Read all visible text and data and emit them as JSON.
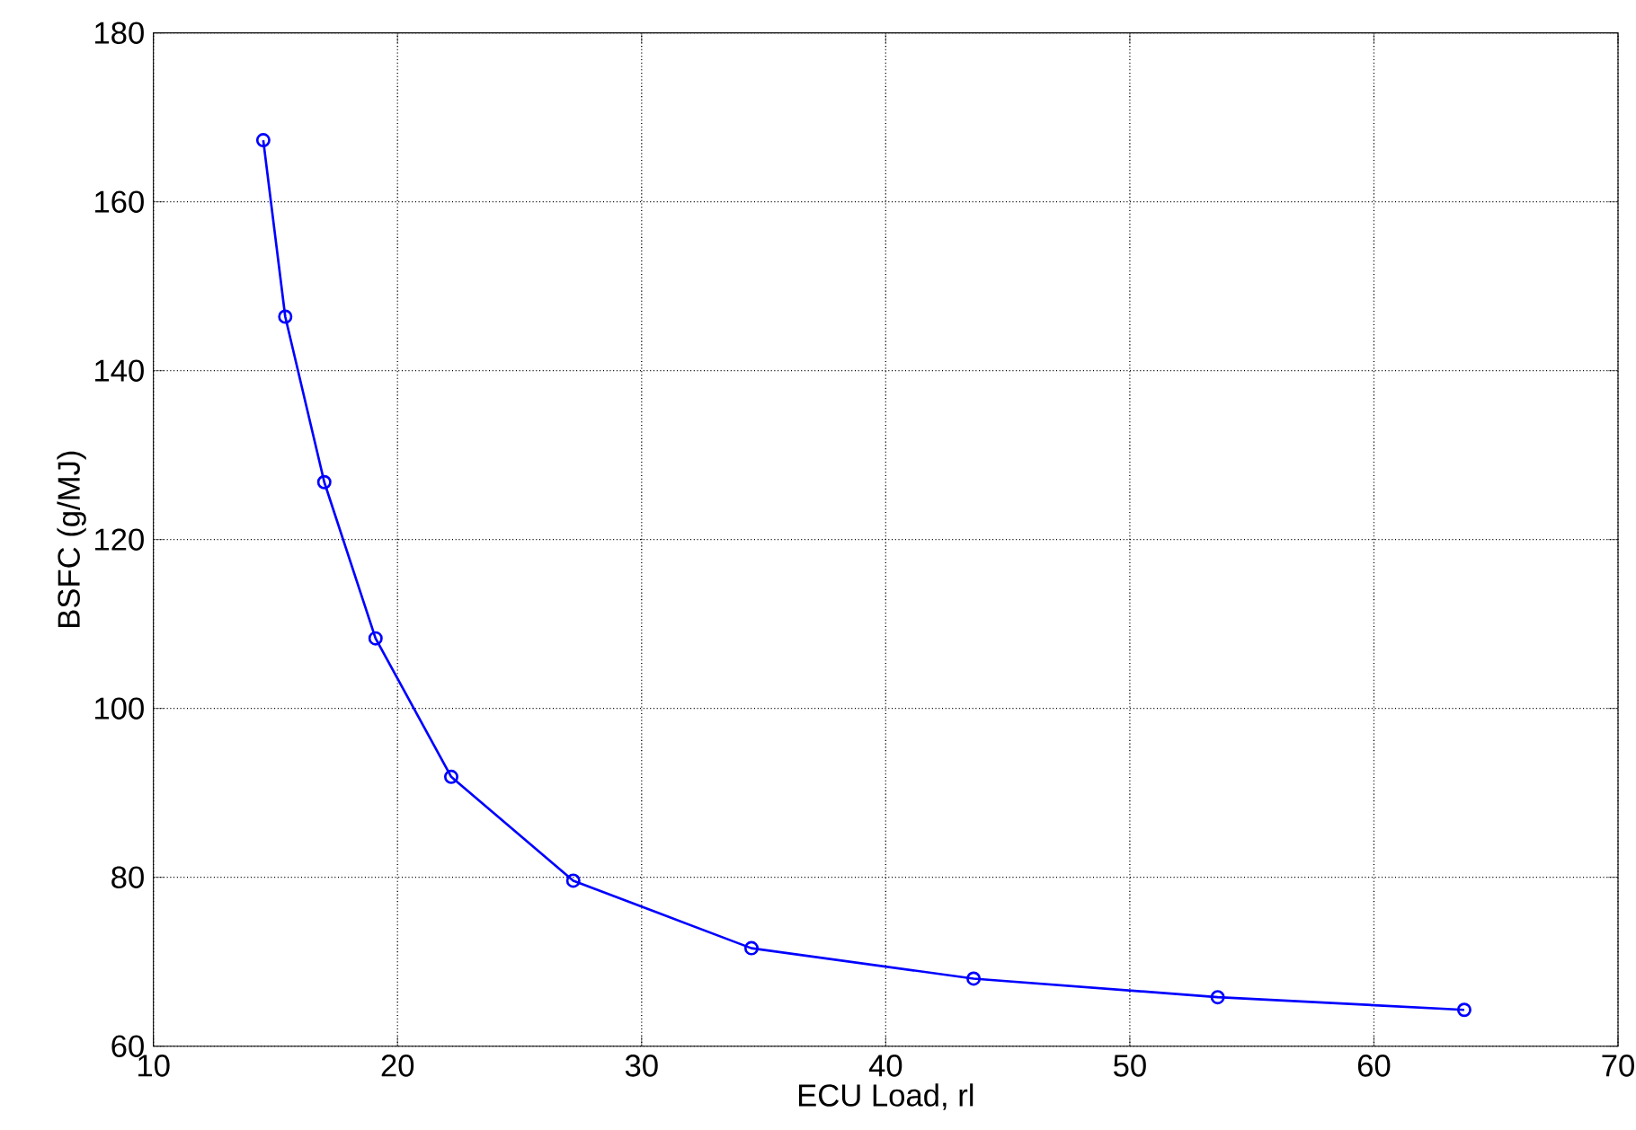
{
  "chart_data": {
    "type": "line",
    "xlabel": "ECU Load, rl",
    "ylabel": "BSFC (g/MJ)",
    "x": [
      14.5,
      15.4,
      17.0,
      19.1,
      22.2,
      27.2,
      34.5,
      43.6,
      53.6,
      63.7
    ],
    "series": [
      {
        "color": "#0000ff",
        "values": [
          167.3,
          146.4,
          126.8,
          108.3,
          91.9,
          79.6,
          71.6,
          68.0,
          65.8,
          64.3
        ]
      }
    ],
    "xlim": [
      10,
      70
    ],
    "ylim": [
      60,
      180
    ],
    "xticks": [
      10,
      20,
      30,
      40,
      50,
      60,
      70
    ],
    "yticks": [
      60,
      80,
      100,
      120,
      140,
      160,
      180
    ],
    "grid": true,
    "marker": "circle",
    "line_style": "solid"
  }
}
